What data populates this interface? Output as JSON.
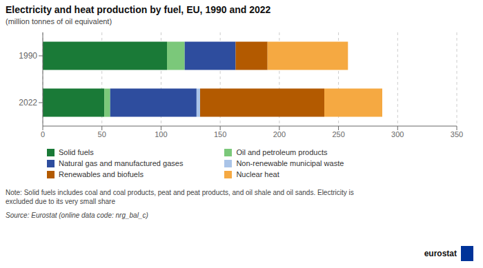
{
  "chart_data": {
    "type": "bar",
    "orientation": "horizontal",
    "stacked": true,
    "title": "Electricity and heat production by fuel, EU, 1990 and 2022",
    "subtitle": "(million tonnes of oil equivalent)",
    "categories": [
      "2022",
      "1990"
    ],
    "series": [
      {
        "name": "Solid fuels",
        "color": "#1a7a37",
        "values": [
          52,
          105
        ]
      },
      {
        "name": "Oil and petroleum products",
        "color": "#7bc87a",
        "values": [
          5,
          15
        ]
      },
      {
        "name": "Natural gas and manufactured gases",
        "color": "#2e4d9e",
        "values": [
          73,
          43
        ]
      },
      {
        "name": "Non-renewable municipal waste",
        "color": "#aac4e8",
        "values": [
          3,
          0
        ]
      },
      {
        "name": "Renewables and biofuels",
        "color": "#b35a00",
        "values": [
          105,
          27
        ]
      },
      {
        "name": "Nuclear heat",
        "color": "#f5a942",
        "values": [
          49,
          68
        ]
      }
    ],
    "xlim": [
      0,
      350
    ],
    "xticks": [
      0,
      50,
      100,
      150,
      200,
      250,
      300,
      350
    ],
    "grid": true,
    "legend": "bottom",
    "annotations": [
      "Note: Solid fuels includes coal and coal products, peat and peat products, and oil shale and oil sands. Electricity is\nexcluded due to its very small share",
      "Source: Eurostat (online data code: nrg_bal_c)",
      "eurostat"
    ]
  }
}
